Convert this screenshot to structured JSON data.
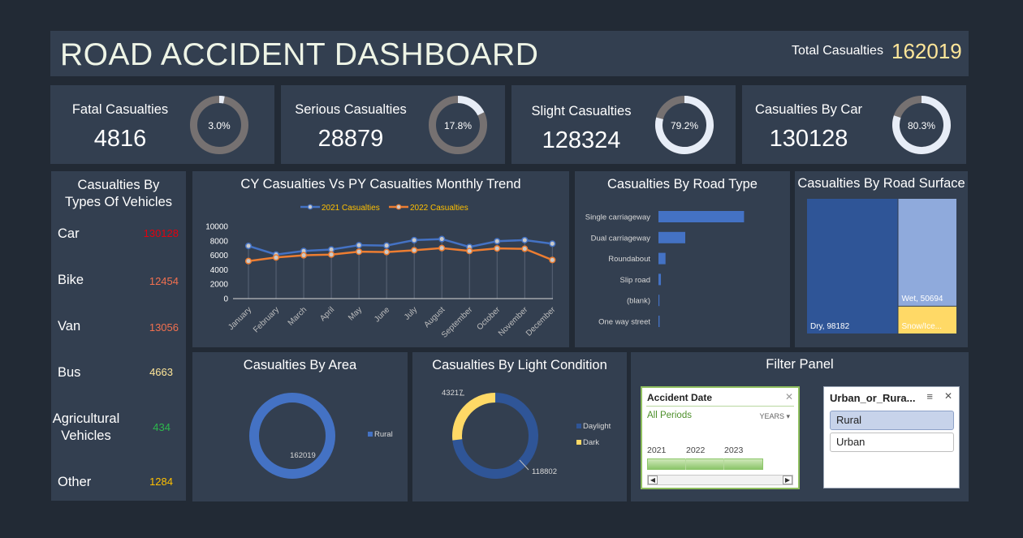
{
  "header": {
    "title": "ROAD ACCIDENT DASHBOARD",
    "total_label": "Total Casualties",
    "total_value": "162019"
  },
  "kpis": [
    {
      "label": "Fatal Casualties",
      "value": "4816",
      "pct_label": "3.0%",
      "pct": 0.03
    },
    {
      "label": "Serious Casualties",
      "value": "28879",
      "pct_label": "17.8%",
      "pct": 0.178
    },
    {
      "label": "Slight Casualties",
      "value": "128324",
      "pct_label": "79.2%",
      "pct": 0.792
    },
    {
      "label": "Casualties By Car",
      "value": "130128",
      "pct_label": "80.3%",
      "pct": 0.803
    }
  ],
  "vehicles": {
    "title_line1": "Casualties By",
    "title_line2": "Types Of Vehicles",
    "items": [
      {
        "name": "Car",
        "value": "130128",
        "color": "#e3000f"
      },
      {
        "name": "Bike",
        "value": "12454",
        "color": "#f2704f"
      },
      {
        "name": "Van",
        "value": "13056",
        "color": "#f2704f"
      },
      {
        "name": "Bus",
        "value": "4663",
        "color": "#ffe699"
      },
      {
        "name_line1": "Agricultural",
        "name_line2": "Vehicles",
        "value": "434",
        "color": "#2db84d"
      },
      {
        "name": "Other",
        "value": "1284",
        "color": "#ffc000"
      }
    ]
  },
  "colors": {
    "panel": "#333f50",
    "background": "#222a35",
    "series_2021": "#4472c4",
    "series_2022": "#ed7d31",
    "bar": "#4472c4",
    "donut_track": "#767171",
    "donut_fill": "#e7edf7",
    "legend_text": "#ffc000"
  },
  "chart_data": [
    {
      "type": "line",
      "title": "CY Casualties Vs PY Casualties Monthly Trend",
      "categories": [
        "January",
        "February",
        "March",
        "April",
        "May",
        "June",
        "July",
        "August",
        "September",
        "October",
        "November",
        "December"
      ],
      "series": [
        {
          "name": "2021 Casualties",
          "values": [
            7300,
            6100,
            6600,
            6800,
            7400,
            7350,
            8100,
            8250,
            7150,
            7950,
            8100,
            7600
          ]
        },
        {
          "name": "2022 Casualties",
          "values": [
            5200,
            5700,
            6000,
            6100,
            6500,
            6450,
            6700,
            7000,
            6600,
            6950,
            6900,
            5350
          ]
        }
      ],
      "yticks": [
        0,
        2000,
        4000,
        6000,
        8000,
        10000
      ],
      "ylim": [
        0,
        10000
      ],
      "legend": "top"
    },
    {
      "type": "bar",
      "orientation": "horizontal",
      "title": "Casualties By Road Type",
      "categories": [
        "Single carriageway",
        "Dual carriageway",
        "Roundabout",
        "Slip road",
        "(blank)",
        "One way street"
      ],
      "values": [
        115000,
        36000,
        9500,
        3300,
        500,
        1500
      ]
    },
    {
      "type": "treemap",
      "title": "Casualties By Road Surface",
      "items": [
        {
          "label": "Dry, 98182",
          "value": 98182,
          "color": "#2f5597"
        },
        {
          "label": "Wet, 50694",
          "value": 50694,
          "color": "#8faadc"
        },
        {
          "label": "Snow/Ice...",
          "value": 13143,
          "color": "#ffd966"
        }
      ]
    },
    {
      "type": "pie",
      "style": "donut",
      "title": "Casualties By Area",
      "slices": [
        {
          "name": "Rural",
          "value": 162019,
          "label": "162019",
          "color": "#4472c4"
        }
      ],
      "legend": "right"
    },
    {
      "type": "pie",
      "style": "donut",
      "title": "Casualties By Light Condition",
      "slices": [
        {
          "name": "Daylight",
          "value": 118802,
          "label": "118802",
          "color": "#2f5597"
        },
        {
          "name": "Dark",
          "value": 43217,
          "label": "43217",
          "color": "#ffd966"
        }
      ],
      "legend": "right"
    }
  ],
  "filter": {
    "title": "Filter Panel",
    "date_slicer": {
      "header": "Accident Date",
      "all_periods": "All Periods",
      "level": "YEARS",
      "years": [
        "2021",
        "2022",
        "2023"
      ]
    },
    "area_slicer": {
      "header": "Urban_or_Rura...",
      "options": [
        "Rural",
        "Urban"
      ],
      "selected": "Rural"
    }
  }
}
